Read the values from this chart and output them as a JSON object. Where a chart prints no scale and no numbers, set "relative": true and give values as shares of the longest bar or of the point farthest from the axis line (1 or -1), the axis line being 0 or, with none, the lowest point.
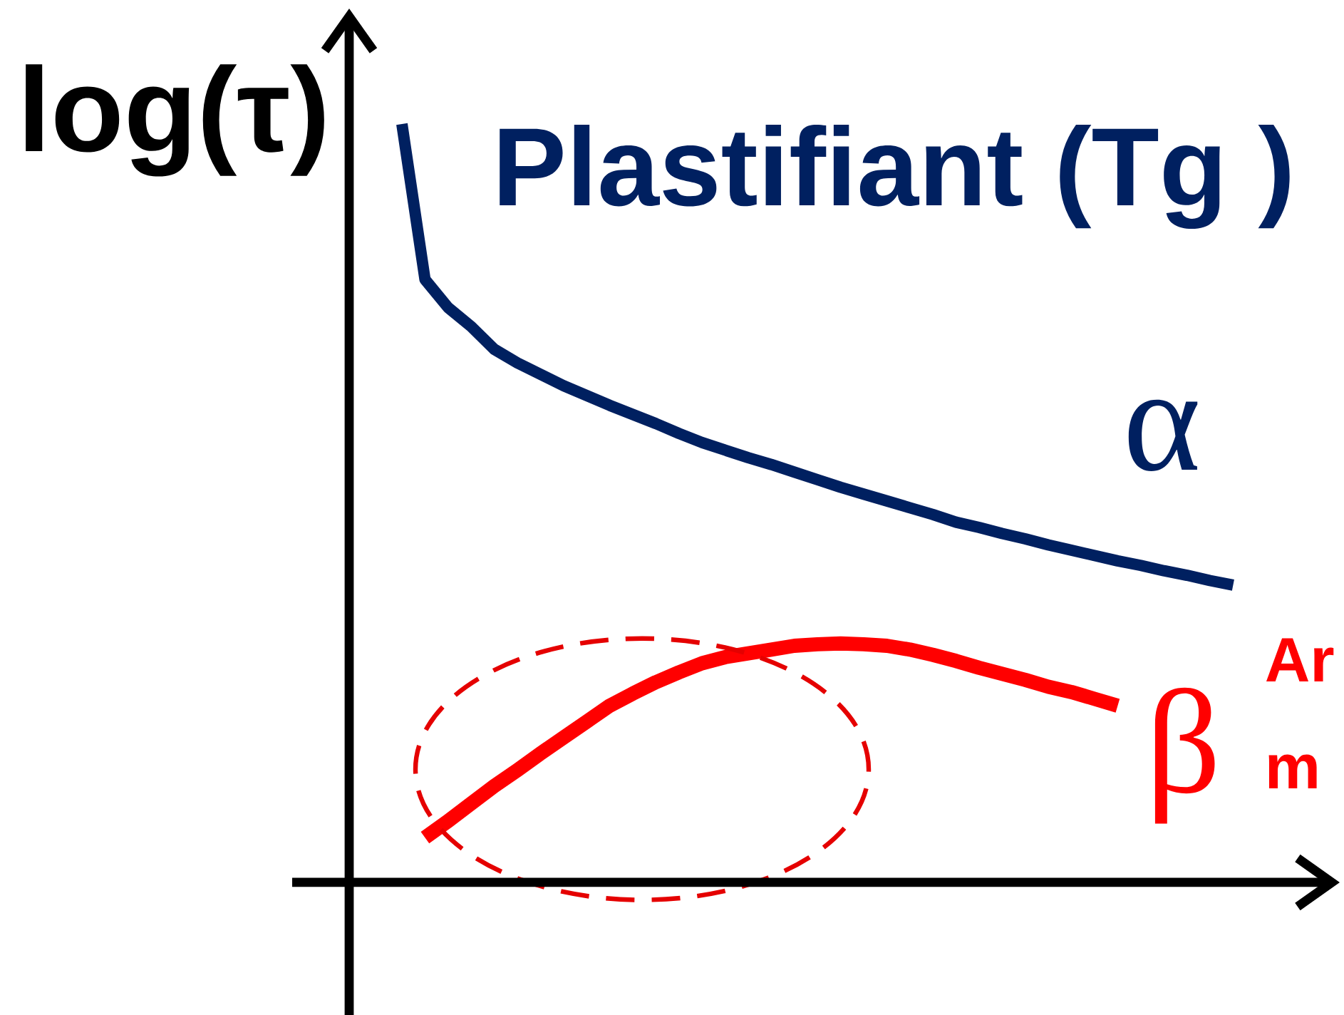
{
  "chart_data": {
    "type": "line",
    "title": "Plastifiant (Tg )",
    "ylabel": "log(τ)",
    "relative": true,
    "categories": [
      null,
      null,
      null,
      null,
      null,
      null,
      null,
      null,
      null,
      null,
      null,
      null,
      null,
      null,
      null,
      null,
      null,
      null,
      null,
      null,
      null,
      null,
      null,
      null,
      null,
      null,
      null,
      null,
      null,
      null,
      null,
      null,
      null,
      null,
      null,
      null,
      null
    ],
    "series": [
      {
        "name": "α",
        "color": "#002060",
        "values": [
          1.0,
          0.795,
          0.758,
          0.733,
          0.703,
          0.685,
          0.67,
          0.655,
          0.642,
          0.629,
          0.617,
          0.605,
          0.592,
          0.58,
          0.57,
          0.56,
          0.551,
          0.541,
          0.531,
          0.521,
          0.512,
          0.503,
          0.494,
          0.485,
          0.475,
          0.468,
          0.46,
          0.453,
          0.445,
          0.438,
          0.431,
          0.424,
          0.418,
          0.411,
          0.405,
          0.398,
          0.392
        ]
      },
      {
        "name": "β",
        "color": "#ff0000",
        "values": [
          null,
          0.059,
          0.081,
          0.104,
          0.127,
          0.148,
          0.17,
          0.191,
          0.212,
          0.233,
          0.249,
          0.264,
          0.277,
          0.289,
          0.297,
          0.302,
          0.307,
          0.312,
          0.314,
          0.315,
          0.314,
          0.312,
          0.307,
          0.3,
          0.292,
          0.283,
          0.275,
          0.267,
          0.258,
          0.251,
          0.242,
          0.233,
          null,
          null,
          null,
          null,
          null
        ]
      }
    ],
    "annotations": [
      "Ar",
      "m"
    ]
  }
}
